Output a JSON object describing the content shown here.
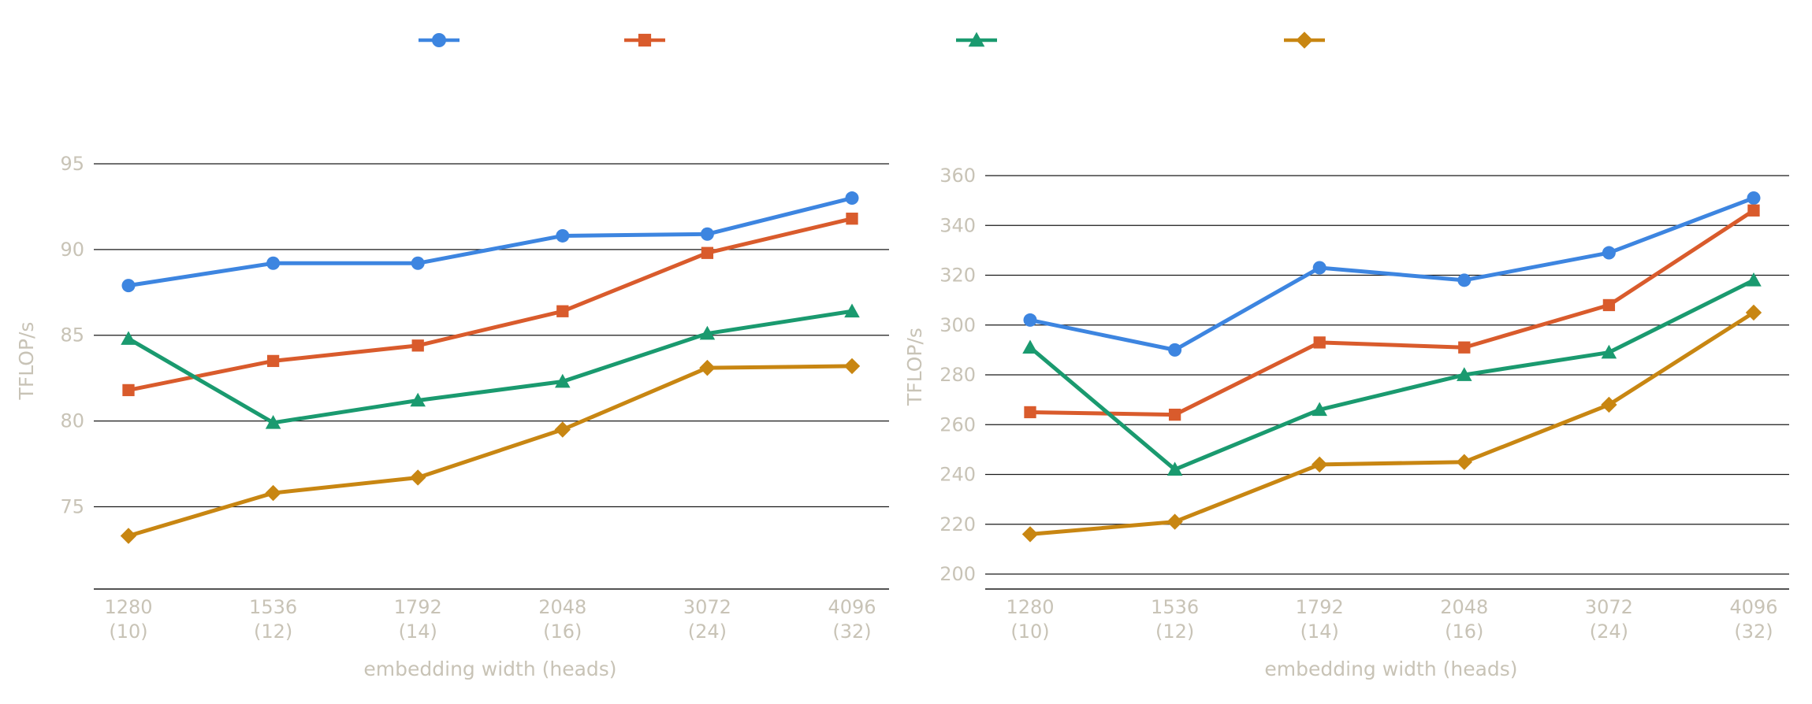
{
  "legend": {
    "items": [
      {
        "marker": "circle",
        "color": "#3d85e0"
      },
      {
        "marker": "square",
        "color": "#d95b2c"
      },
      {
        "marker": "triangle",
        "color": "#1a9a6f"
      },
      {
        "marker": "diamond",
        "color": "#c88612"
      }
    ]
  },
  "chart_data": [
    {
      "type": "line",
      "x_tick_labels": [
        [
          "1280",
          "(10)"
        ],
        [
          "1536",
          "(12)"
        ],
        [
          "1792",
          "(14)"
        ],
        [
          "2048",
          "(16)"
        ],
        [
          "3072",
          "(24)"
        ],
        [
          "4096",
          "(32)"
        ]
      ],
      "xlabel": "embedding width (heads)",
      "ylabel": "TFLOP/s",
      "yticks": [
        75,
        80,
        85,
        90,
        95
      ],
      "ylim": [
        70.2,
        95
      ],
      "grid": "horizontal",
      "series": [
        {
          "marker": "circle",
          "color": "#3d85e0",
          "values": [
            87.9,
            89.2,
            89.2,
            90.8,
            90.9,
            93.0
          ]
        },
        {
          "marker": "square",
          "color": "#d95b2c",
          "values": [
            81.8,
            83.5,
            84.4,
            86.4,
            89.8,
            91.8
          ]
        },
        {
          "marker": "triangle",
          "color": "#1a9a6f",
          "values": [
            84.8,
            79.9,
            81.2,
            82.3,
            85.1,
            86.4
          ]
        },
        {
          "marker": "diamond",
          "color": "#c88612",
          "values": [
            73.3,
            75.8,
            76.7,
            79.5,
            83.1,
            83.2
          ]
        }
      ]
    },
    {
      "type": "line",
      "x_tick_labels": [
        [
          "1280",
          "(10)"
        ],
        [
          "1536",
          "(12)"
        ],
        [
          "1792",
          "(14)"
        ],
        [
          "2048",
          "(16)"
        ],
        [
          "3072",
          "(24)"
        ],
        [
          "4096",
          "(32)"
        ]
      ],
      "xlabel": "embedding width (heads)",
      "ylabel": "TFLOP/s",
      "yticks": [
        200,
        220,
        240,
        260,
        280,
        300,
        320,
        340,
        360
      ],
      "ylim": [
        194,
        360
      ],
      "grid": "horizontal",
      "series": [
        {
          "marker": "circle",
          "color": "#3d85e0",
          "values": [
            302,
            290,
            323,
            318,
            329,
            351
          ]
        },
        {
          "marker": "square",
          "color": "#d95b2c",
          "values": [
            265,
            264,
            293,
            291,
            308,
            346
          ]
        },
        {
          "marker": "triangle",
          "color": "#1a9a6f",
          "values": [
            291,
            242,
            266,
            280,
            289,
            318
          ]
        },
        {
          "marker": "diamond",
          "color": "#c88612",
          "values": [
            216,
            221,
            244,
            245,
            268,
            305
          ]
        }
      ]
    }
  ]
}
